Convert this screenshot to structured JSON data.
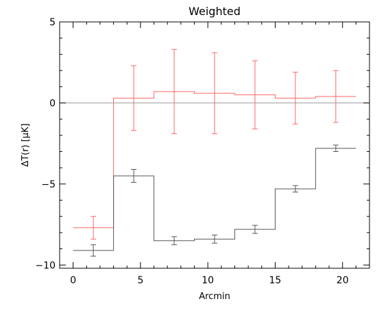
{
  "chart_data": {
    "type": "line",
    "title": "Weighted",
    "xlabel": "Arcmin",
    "ylabel": "ΔT(r) [μK]",
    "xlim": [
      -1,
      22
    ],
    "ylim": [
      -10.2,
      5
    ],
    "x_ticks": [
      0,
      5,
      10,
      15,
      20
    ],
    "y_ticks": [
      -10,
      -5,
      0,
      5
    ],
    "x_tick_labels": [
      "0",
      "5",
      "10",
      "15",
      "20"
    ],
    "y_tick_labels": [
      "−10",
      "−5",
      "0",
      "5"
    ],
    "reference_line": {
      "y": 0,
      "color": "#999999"
    },
    "series": [
      {
        "color": "#ff6666",
        "style": "step-with-errorbars",
        "bin_edges": [
          0,
          3,
          6,
          9,
          12,
          15,
          18,
          21
        ],
        "x": [
          1.5,
          4.5,
          7.5,
          10.5,
          13.5,
          16.5,
          19.5
        ],
        "values": [
          -7.7,
          0.3,
          0.7,
          0.6,
          0.5,
          0.3,
          0.4
        ],
        "errors": [
          0.7,
          2.0,
          2.6,
          2.5,
          2.1,
          1.6,
          1.6
        ]
      },
      {
        "color": "#555555",
        "style": "step-with-errorbars",
        "bin_edges": [
          0,
          3,
          6,
          9,
          12,
          15,
          18,
          21
        ],
        "x": [
          1.5,
          4.5,
          7.5,
          10.5,
          13.5,
          16.5,
          19.5
        ],
        "values": [
          -9.1,
          -4.5,
          -8.5,
          -8.4,
          -7.8,
          -5.3,
          -2.8
        ],
        "errors": [
          0.35,
          0.4,
          0.25,
          0.25,
          0.25,
          0.2,
          0.2
        ]
      }
    ]
  }
}
